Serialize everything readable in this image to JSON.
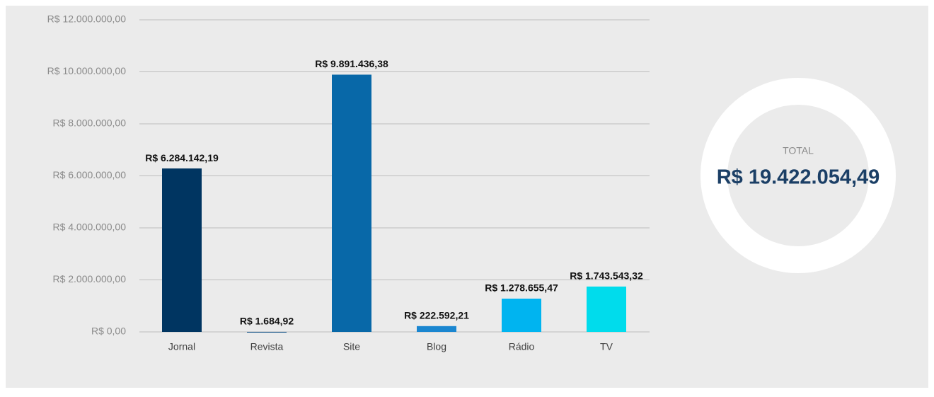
{
  "chart_data": {
    "type": "bar",
    "categories": [
      "Jornal",
      "Revista",
      "Site",
      "Blog",
      "Rádio",
      "TV"
    ],
    "values": [
      6284142.19,
      1684.92,
      9891436.38,
      222592.21,
      1278655.47,
      1743543.32
    ],
    "value_labels": [
      "R$ 6.284.142,19",
      "R$ 1.684,92",
      "R$ 9.891.436,38",
      "R$ 222.592,21",
      "R$ 1.278.655,47",
      "R$ 1.743.543,32"
    ],
    "colors": [
      "#003561",
      "#0b4c84",
      "#0868a8",
      "#1a86d0",
      "#00b4f0",
      "#00dcec"
    ],
    "ylim": [
      0,
      12000000
    ],
    "yticks": [
      {
        "value": 0,
        "label": "R$ 0,00"
      },
      {
        "value": 2000000,
        "label": "R$ 2.000.000,00"
      },
      {
        "value": 4000000,
        "label": "R$ 4.000.000,00"
      },
      {
        "value": 6000000,
        "label": "R$ 6.000.000,00"
      },
      {
        "value": 8000000,
        "label": "R$ 8.000.000,00"
      },
      {
        "value": 10000000,
        "label": "R$ 10.000.000,00"
      },
      {
        "value": 12000000,
        "label": "R$ 12.000.000,00"
      }
    ],
    "grid": true,
    "total_label": "TOTAL",
    "total_text": "R$ 19.422.054,49"
  }
}
